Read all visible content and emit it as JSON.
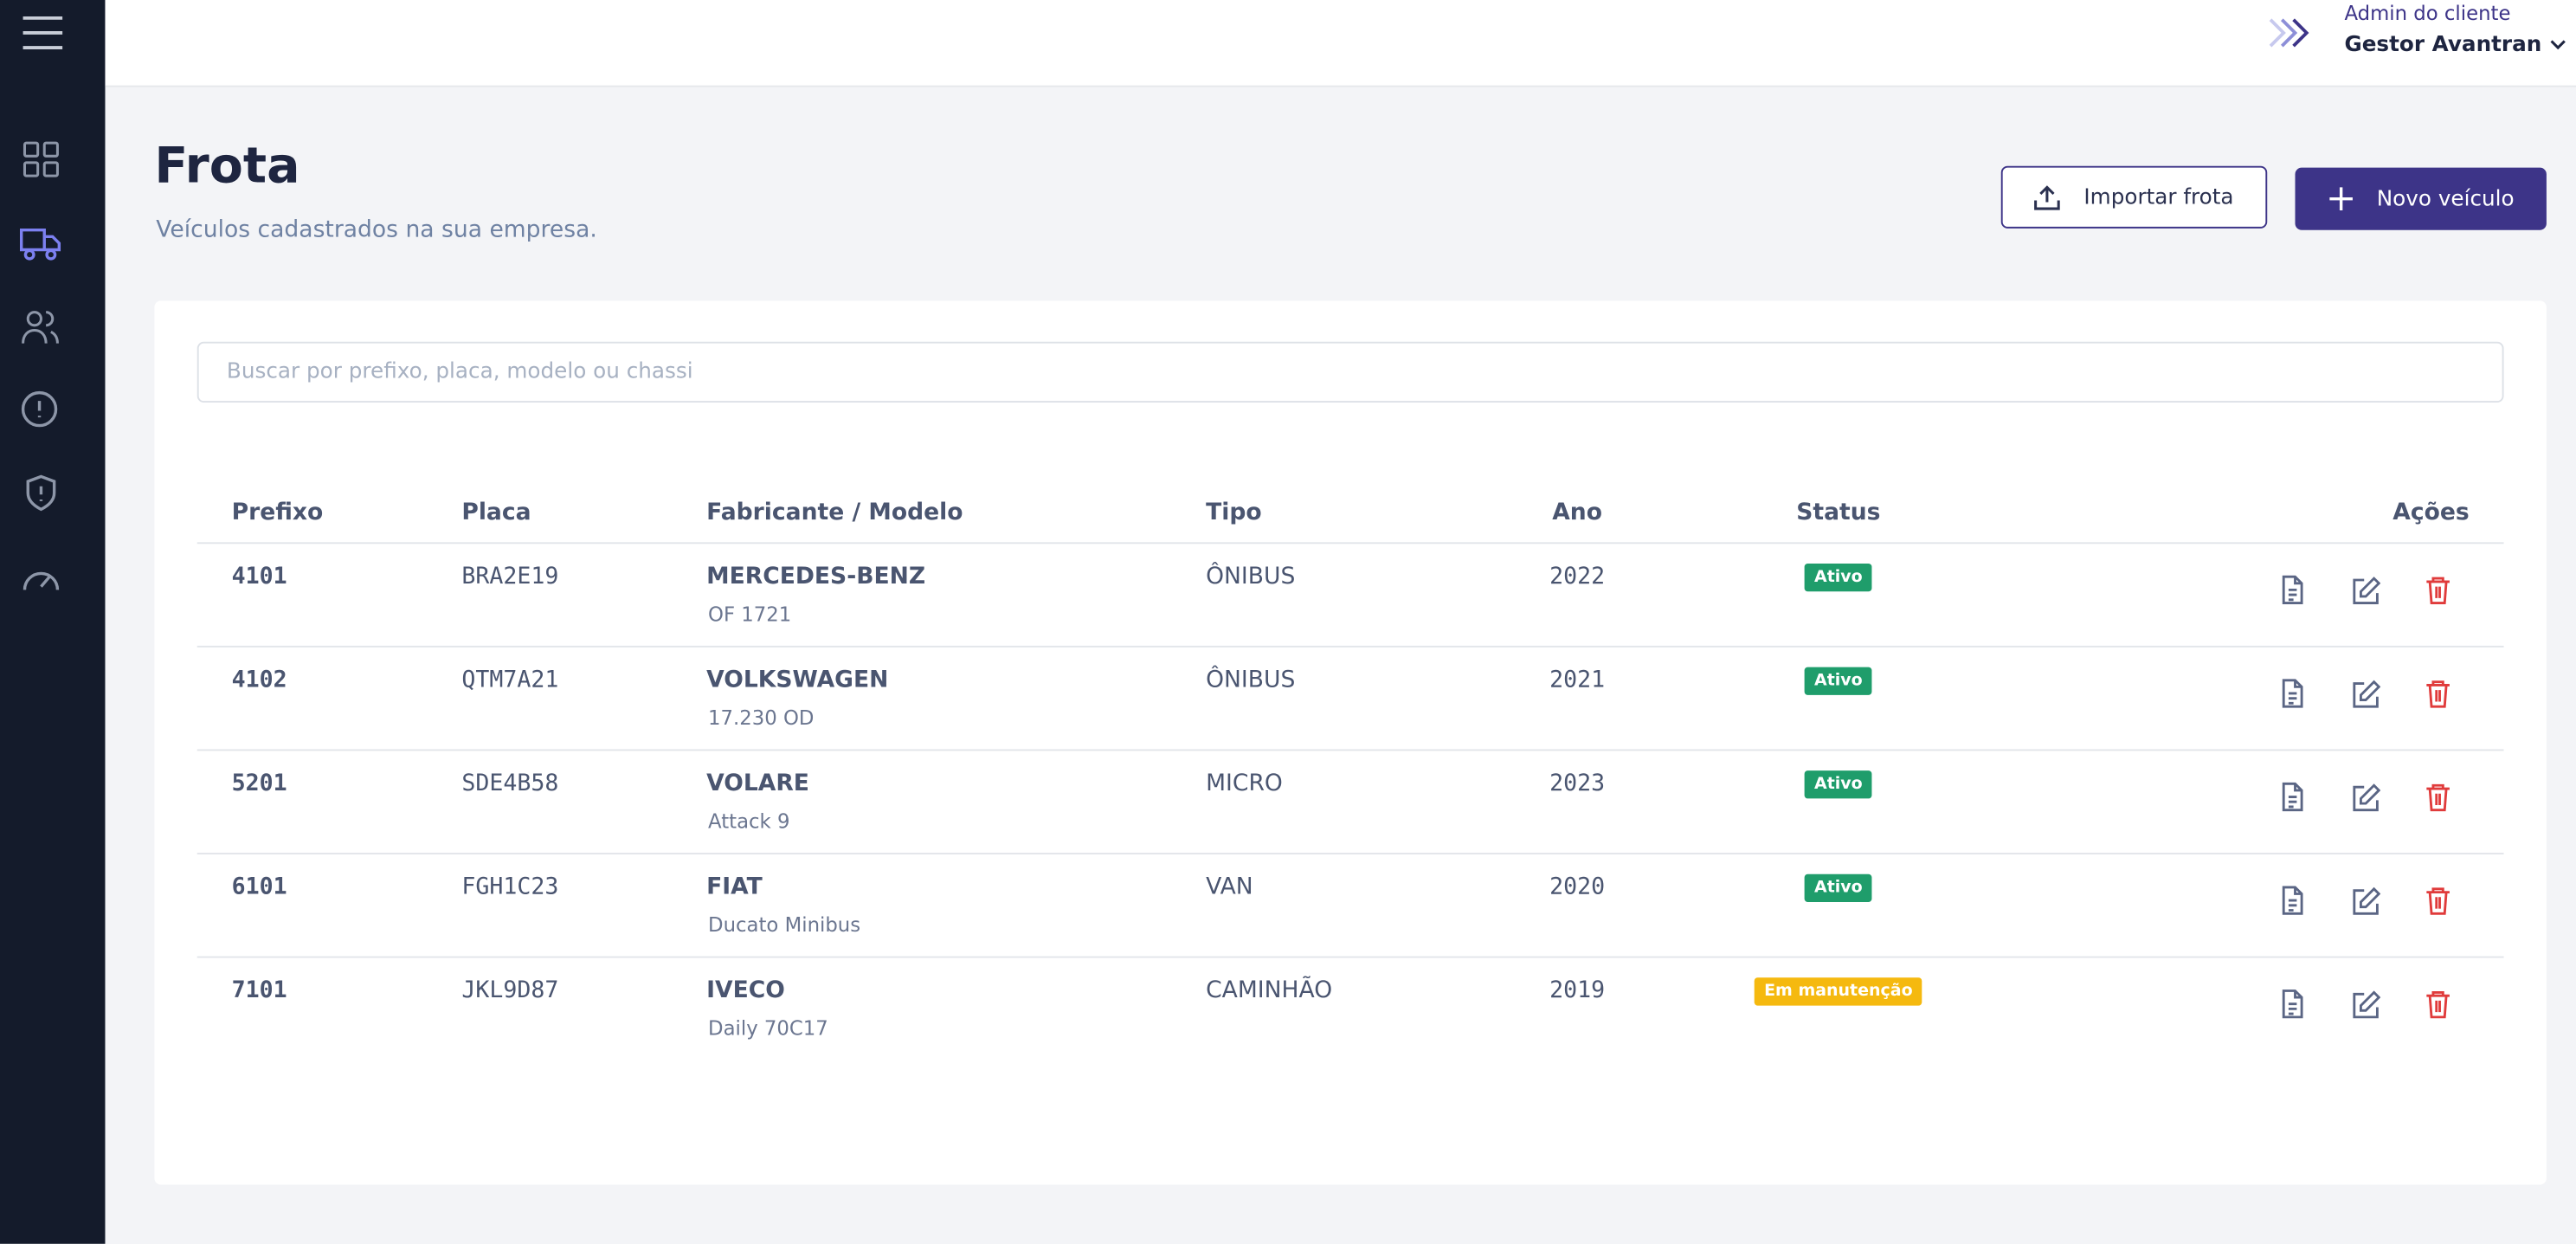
{
  "header": {
    "role": "Admin do cliente",
    "user": "Gestor Avantran"
  },
  "page": {
    "title": "Frota",
    "subtitle": "Veículos cadastrados na sua empresa.",
    "import_button": "Importar frota",
    "new_button": "Novo veículo"
  },
  "search": {
    "placeholder": "Buscar por prefixo, placa, modelo ou chassi"
  },
  "table": {
    "columns": [
      "Prefixo",
      "Placa",
      "Fabricante / Modelo",
      "Tipo",
      "Ano",
      "Status",
      "Ações"
    ],
    "rows": [
      {
        "prefix": "4101",
        "plate": "BRA2E19",
        "maker": "MERCEDES-BENZ",
        "model": "OF 1721",
        "type": "ÔNIBUS",
        "year": "2022",
        "status": "Ativo"
      },
      {
        "prefix": "4102",
        "plate": "QTM7A21",
        "maker": "VOLKSWAGEN",
        "model": "17.230 OD",
        "type": "ÔNIBUS",
        "year": "2021",
        "status": "Ativo"
      },
      {
        "prefix": "5201",
        "plate": "SDE4B58",
        "maker": "VOLARE",
        "model": "Attack 9",
        "type": "MICRO",
        "year": "2023",
        "status": "Ativo"
      },
      {
        "prefix": "6101",
        "plate": "FGH1C23",
        "maker": "FIAT",
        "model": "Ducato Minibus",
        "type": "VAN",
        "year": "2020",
        "status": "Ativo"
      },
      {
        "prefix": "7101",
        "plate": "JKL9D87",
        "maker": "IVECO",
        "model": "Daily 70C17",
        "type": "CAMINHÃO",
        "year": "2019",
        "status": "Em manutenção"
      }
    ]
  }
}
